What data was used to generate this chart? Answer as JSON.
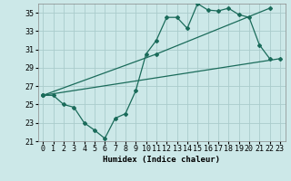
{
  "xlabel": "Humidex (Indice chaleur)",
  "background_color": "#cce8e8",
  "grid_color": "#aacccc",
  "line_color": "#1a6b5a",
  "xlim": [
    -0.5,
    23.5
  ],
  "ylim": [
    21,
    36
  ],
  "yticks": [
    21,
    23,
    25,
    27,
    29,
    31,
    33,
    35
  ],
  "xticks": [
    0,
    1,
    2,
    3,
    4,
    5,
    6,
    7,
    8,
    9,
    10,
    11,
    12,
    13,
    14,
    15,
    16,
    17,
    18,
    19,
    20,
    21,
    22,
    23
  ],
  "series1_x": [
    0,
    1,
    2,
    3,
    4,
    5,
    6,
    7,
    8,
    9,
    10,
    11,
    12,
    13,
    14,
    15,
    16,
    17,
    18,
    19,
    20,
    21,
    22
  ],
  "series1_y": [
    26.0,
    26.0,
    25.0,
    24.7,
    23.0,
    22.2,
    21.3,
    23.5,
    24.0,
    26.5,
    30.5,
    32.0,
    34.5,
    34.5,
    33.3,
    36.0,
    35.3,
    35.2,
    35.5,
    34.8,
    34.5,
    31.5,
    30.0
  ],
  "series2_x": [
    0,
    23
  ],
  "series2_y": [
    26.0,
    30.0
  ],
  "series3_x": [
    0,
    11,
    22
  ],
  "series3_y": [
    26.0,
    30.5,
    35.5
  ]
}
